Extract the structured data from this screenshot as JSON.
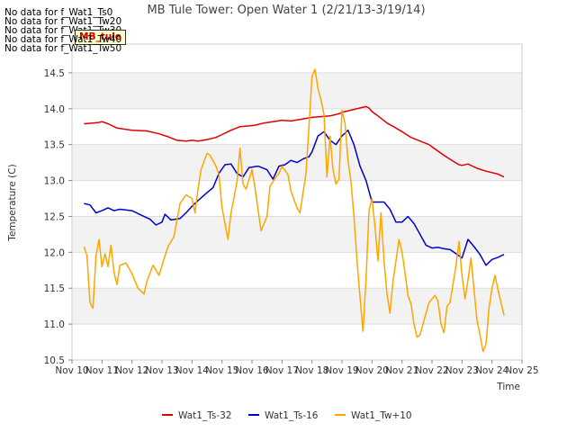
{
  "no_data_messages": [
    "No data for f_Wat1_Ts0",
    "No data for f_Wat1_Tw20",
    "No data for f_Wat1_Tw30",
    "No data for f_Wat1_Tw40",
    "No data for f_Wat1_Tw50"
  ],
  "badge_label": "MB_tule",
  "chart_data": {
    "type": "line",
    "title": "MB Tule Tower: Open Water 1 (2/21/13-3/19/14)",
    "xlabel": "Time",
    "ylabel": "Temperature (C)",
    "xlim": [
      10,
      25
    ],
    "ylim": [
      10.5,
      14.9
    ],
    "x_ticks": [
      10,
      11,
      12,
      13,
      14,
      15,
      16,
      17,
      18,
      19,
      20,
      21,
      22,
      23,
      24,
      25
    ],
    "x_tick_labels": [
      "Nov 10",
      "Nov 11",
      "Nov 12",
      "Nov 13",
      "Nov 14",
      "Nov 15",
      "Nov 16",
      "Nov 17",
      "Nov 18",
      "Nov 19",
      "Nov 20",
      "Nov 21",
      "Nov 22",
      "Nov 23",
      "Nov 24",
      "Nov 25"
    ],
    "y_ticks": [
      10.5,
      11.0,
      11.5,
      12.0,
      12.5,
      13.0,
      13.5,
      14.0,
      14.5
    ],
    "y_tick_labels": [
      "10.5",
      "11.0",
      "11.5",
      "12.0",
      "12.5",
      "13.0",
      "13.5",
      "14.0",
      "14.5"
    ],
    "background_bands": [
      [
        11.0,
        11.5
      ],
      [
        12.0,
        12.5
      ],
      [
        13.0,
        13.5
      ],
      [
        14.0,
        14.5
      ]
    ],
    "legend_position": "bottom",
    "series": [
      {
        "name": "Wat1_Ts-32",
        "color": "#dd0000",
        "x": [
          10.4,
          10.7,
          10.9,
          11.0,
          11.2,
          11.5,
          12.0,
          12.5,
          12.9,
          13.2,
          13.5,
          13.8,
          14.0,
          14.2,
          14.5,
          14.8,
          15.0,
          15.3,
          15.6,
          15.9,
          16.1,
          16.4,
          16.7,
          17.0,
          17.3,
          17.6,
          18.0,
          18.3,
          18.6,
          18.9,
          19.0,
          19.3,
          19.6,
          19.8,
          19.9,
          20.0,
          20.2,
          20.5,
          20.8,
          21.0,
          21.3,
          21.6,
          21.9,
          22.1,
          22.4,
          22.7,
          22.9,
          23.0,
          23.2,
          23.5,
          23.8,
          24.0,
          24.2,
          24.4
        ],
        "values": [
          13.79,
          13.8,
          13.81,
          13.82,
          13.79,
          13.73,
          13.7,
          13.69,
          13.65,
          13.61,
          13.56,
          13.55,
          13.56,
          13.55,
          13.57,
          13.6,
          13.64,
          13.7,
          13.75,
          13.76,
          13.77,
          13.8,
          13.82,
          13.84,
          13.83,
          13.85,
          13.88,
          13.89,
          13.9,
          13.93,
          13.95,
          13.98,
          14.01,
          14.03,
          14.01,
          13.96,
          13.9,
          13.8,
          13.73,
          13.68,
          13.6,
          13.55,
          13.5,
          13.44,
          13.35,
          13.27,
          13.22,
          13.21,
          13.23,
          13.17,
          13.13,
          13.11,
          13.09,
          13.05
        ]
      },
      {
        "name": "Wat1_Ts-16",
        "color": "#0000cc",
        "x": [
          10.4,
          10.6,
          10.8,
          11.0,
          11.2,
          11.4,
          11.6,
          12.0,
          12.3,
          12.6,
          12.8,
          13.0,
          13.1,
          13.3,
          13.6,
          13.8,
          14.0,
          14.2,
          14.5,
          14.7,
          14.9,
          15.1,
          15.3,
          15.5,
          15.7,
          15.9,
          16.2,
          16.5,
          16.7,
          16.9,
          17.1,
          17.3,
          17.5,
          17.7,
          17.9,
          18.0,
          18.2,
          18.4,
          18.6,
          18.8,
          19.0,
          19.2,
          19.4,
          19.6,
          19.8,
          20.0,
          20.2,
          20.4,
          20.6,
          20.8,
          21.0,
          21.2,
          21.4,
          21.6,
          21.8,
          22.0,
          22.2,
          22.4,
          22.6,
          22.8,
          23.0,
          23.2,
          23.4,
          23.6,
          23.8,
          24.0,
          24.2,
          24.4
        ],
        "values": [
          12.68,
          12.66,
          12.55,
          12.58,
          12.62,
          12.58,
          12.6,
          12.58,
          12.52,
          12.46,
          12.38,
          12.42,
          12.53,
          12.45,
          12.47,
          12.55,
          12.64,
          12.72,
          12.83,
          12.9,
          13.1,
          13.22,
          13.23,
          13.1,
          13.05,
          13.18,
          13.2,
          13.15,
          13.02,
          13.2,
          13.22,
          13.28,
          13.25,
          13.3,
          13.33,
          13.4,
          13.62,
          13.68,
          13.56,
          13.5,
          13.62,
          13.7,
          13.5,
          13.2,
          13.0,
          12.7,
          12.7,
          12.7,
          12.6,
          12.42,
          12.42,
          12.5,
          12.4,
          12.25,
          12.1,
          12.06,
          12.07,
          12.05,
          12.04,
          11.98,
          11.92,
          12.18,
          12.08,
          11.97,
          11.82,
          11.9,
          11.93,
          11.97
        ]
      },
      {
        "name": "Wat1_Tw+10",
        "color": "#ffa500",
        "x": [
          10.4,
          10.5,
          10.6,
          10.7,
          10.8,
          10.9,
          11.0,
          11.1,
          11.2,
          11.3,
          11.4,
          11.5,
          11.6,
          11.8,
          12.0,
          12.2,
          12.4,
          12.5,
          12.7,
          12.9,
          13.1,
          13.2,
          13.4,
          13.6,
          13.8,
          14.0,
          14.1,
          14.2,
          14.3,
          14.5,
          14.6,
          14.8,
          14.9,
          15.0,
          15.2,
          15.3,
          15.5,
          15.6,
          15.7,
          15.8,
          16.0,
          16.1,
          16.3,
          16.5,
          16.6,
          16.8,
          16.9,
          17.0,
          17.2,
          17.3,
          17.5,
          17.6,
          17.8,
          17.9,
          18.0,
          18.1,
          18.2,
          18.3,
          18.4,
          18.5,
          18.6,
          18.7,
          18.8,
          18.9,
          19.0,
          19.1,
          19.2,
          19.3,
          19.4,
          19.5,
          19.6,
          19.7,
          19.8,
          19.9,
          20.0,
          20.1,
          20.2,
          20.3,
          20.4,
          20.5,
          20.6,
          20.7,
          20.8,
          20.9,
          21.0,
          21.1,
          21.2,
          21.3,
          21.4,
          21.5,
          21.6,
          21.8,
          21.9,
          22.0,
          22.1,
          22.2,
          22.3,
          22.4,
          22.5,
          22.6,
          22.7,
          22.8,
          22.9,
          23.0,
          23.1,
          23.2,
          23.3,
          23.4,
          23.5,
          23.6,
          23.7,
          23.8,
          23.9,
          24.0,
          24.1,
          24.2,
          24.3,
          24.4
        ],
        "values": [
          12.08,
          11.95,
          11.3,
          11.22,
          11.95,
          12.18,
          11.8,
          11.98,
          11.8,
          12.1,
          11.72,
          11.55,
          11.82,
          11.85,
          11.7,
          11.5,
          11.42,
          11.6,
          11.82,
          11.68,
          11.95,
          12.08,
          12.22,
          12.68,
          12.8,
          12.75,
          12.55,
          12.88,
          13.15,
          13.38,
          13.35,
          13.2,
          13.08,
          12.62,
          12.18,
          12.55,
          12.98,
          13.45,
          12.95,
          12.88,
          13.15,
          12.9,
          12.3,
          12.5,
          12.92,
          13.05,
          13.1,
          13.2,
          13.08,
          12.85,
          12.62,
          12.55,
          13.1,
          13.75,
          14.45,
          14.55,
          14.28,
          14.12,
          13.92,
          13.05,
          13.62,
          13.15,
          12.95,
          13.02,
          13.98,
          13.8,
          13.28,
          12.98,
          12.5,
          11.88,
          11.38,
          10.9,
          11.62,
          12.58,
          12.75,
          12.35,
          11.88,
          12.55,
          11.88,
          11.42,
          11.15,
          11.6,
          11.88,
          12.18,
          12.0,
          11.72,
          11.4,
          11.28,
          11.0,
          10.82,
          10.85,
          11.15,
          11.3,
          11.35,
          11.4,
          11.32,
          11.0,
          10.88,
          11.25,
          11.3,
          11.55,
          11.82,
          12.15,
          11.68,
          11.35,
          11.62,
          11.92,
          11.48,
          11.05,
          10.85,
          10.62,
          10.72,
          11.22,
          11.5,
          11.68,
          11.48,
          11.3,
          11.12
        ]
      }
    ]
  }
}
